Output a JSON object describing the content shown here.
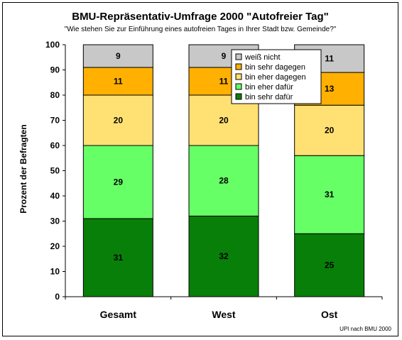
{
  "chart_data": {
    "type": "bar",
    "stacked": true,
    "title": "BMU-Repräsentativ-Umfrage 2000 \"Autofreier Tag\"",
    "subtitle": "\"Wie stehen Sie zur Einführung eines autofreien Tages in Ihrer Stadt bzw. Gemeinde?\"",
    "ylabel": "Prozent der Befragten",
    "xlabel": "",
    "ylim": [
      0,
      100
    ],
    "yticks": [
      "0",
      "10",
      "20",
      "30",
      "40",
      "50",
      "60",
      "70",
      "80",
      "90",
      "100"
    ],
    "grid": false,
    "legend_position": "top-right",
    "categories": [
      "Gesamt",
      "West",
      "Ost"
    ],
    "series": [
      {
        "name": "bin sehr dafür",
        "color": "#087f08",
        "values": [
          31,
          32,
          25
        ]
      },
      {
        "name": "bin eher dafür",
        "color": "#66ff66",
        "values": [
          29,
          28,
          31
        ]
      },
      {
        "name": "bin eher dagegen",
        "color": "#ffe173",
        "values": [
          20,
          20,
          20
        ]
      },
      {
        "name": "bin sehr dagegen",
        "color": "#ffb000",
        "values": [
          11,
          11,
          13
        ]
      },
      {
        "name": "weiß nicht",
        "color": "#c8c8c8",
        "values": [
          9,
          9,
          11
        ]
      }
    ],
    "legend_order": [
      "weiß nicht",
      "bin sehr dagegen",
      "bin eher dagegen",
      "bin eher dafür",
      "bin sehr dafür"
    ],
    "source": "UPI nach BMU 2000"
  }
}
